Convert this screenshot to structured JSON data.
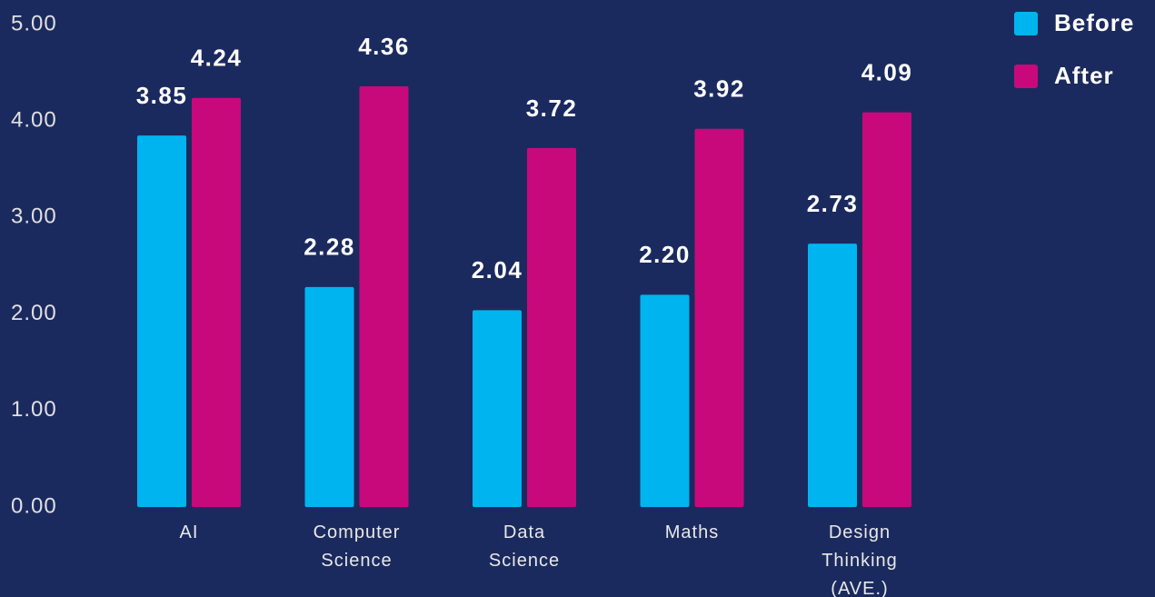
{
  "chart_data": {
    "type": "bar",
    "categories": [
      "AI",
      "Computer Science",
      "Data Science",
      "Maths",
      "Design Thinking (AVE.)"
    ],
    "series": [
      {
        "name": "Before",
        "color": "#00b4f0",
        "values": [
          3.85,
          2.28,
          2.04,
          2.2,
          2.73
        ],
        "value_labels": [
          "3.85",
          "2.28",
          "2.04",
          "2.20",
          "2.73"
        ]
      },
      {
        "name": "After",
        "color": "#c8097c",
        "values": [
          4.24,
          4.36,
          3.72,
          3.92,
          4.09
        ],
        "value_labels": [
          "4.24",
          "4.36",
          "3.72",
          "3.92",
          "4.09"
        ]
      }
    ],
    "ylim": [
      0,
      5
    ],
    "yticks": [
      {
        "value": 0,
        "label": "0.00"
      },
      {
        "value": 1,
        "label": "1.00"
      },
      {
        "value": 2,
        "label": "2.00"
      },
      {
        "value": 3,
        "label": "3.00"
      },
      {
        "value": 4,
        "label": "4.00"
      },
      {
        "value": 5,
        "label": "5.00"
      }
    ],
    "grid": false,
    "legend": "top-right"
  }
}
